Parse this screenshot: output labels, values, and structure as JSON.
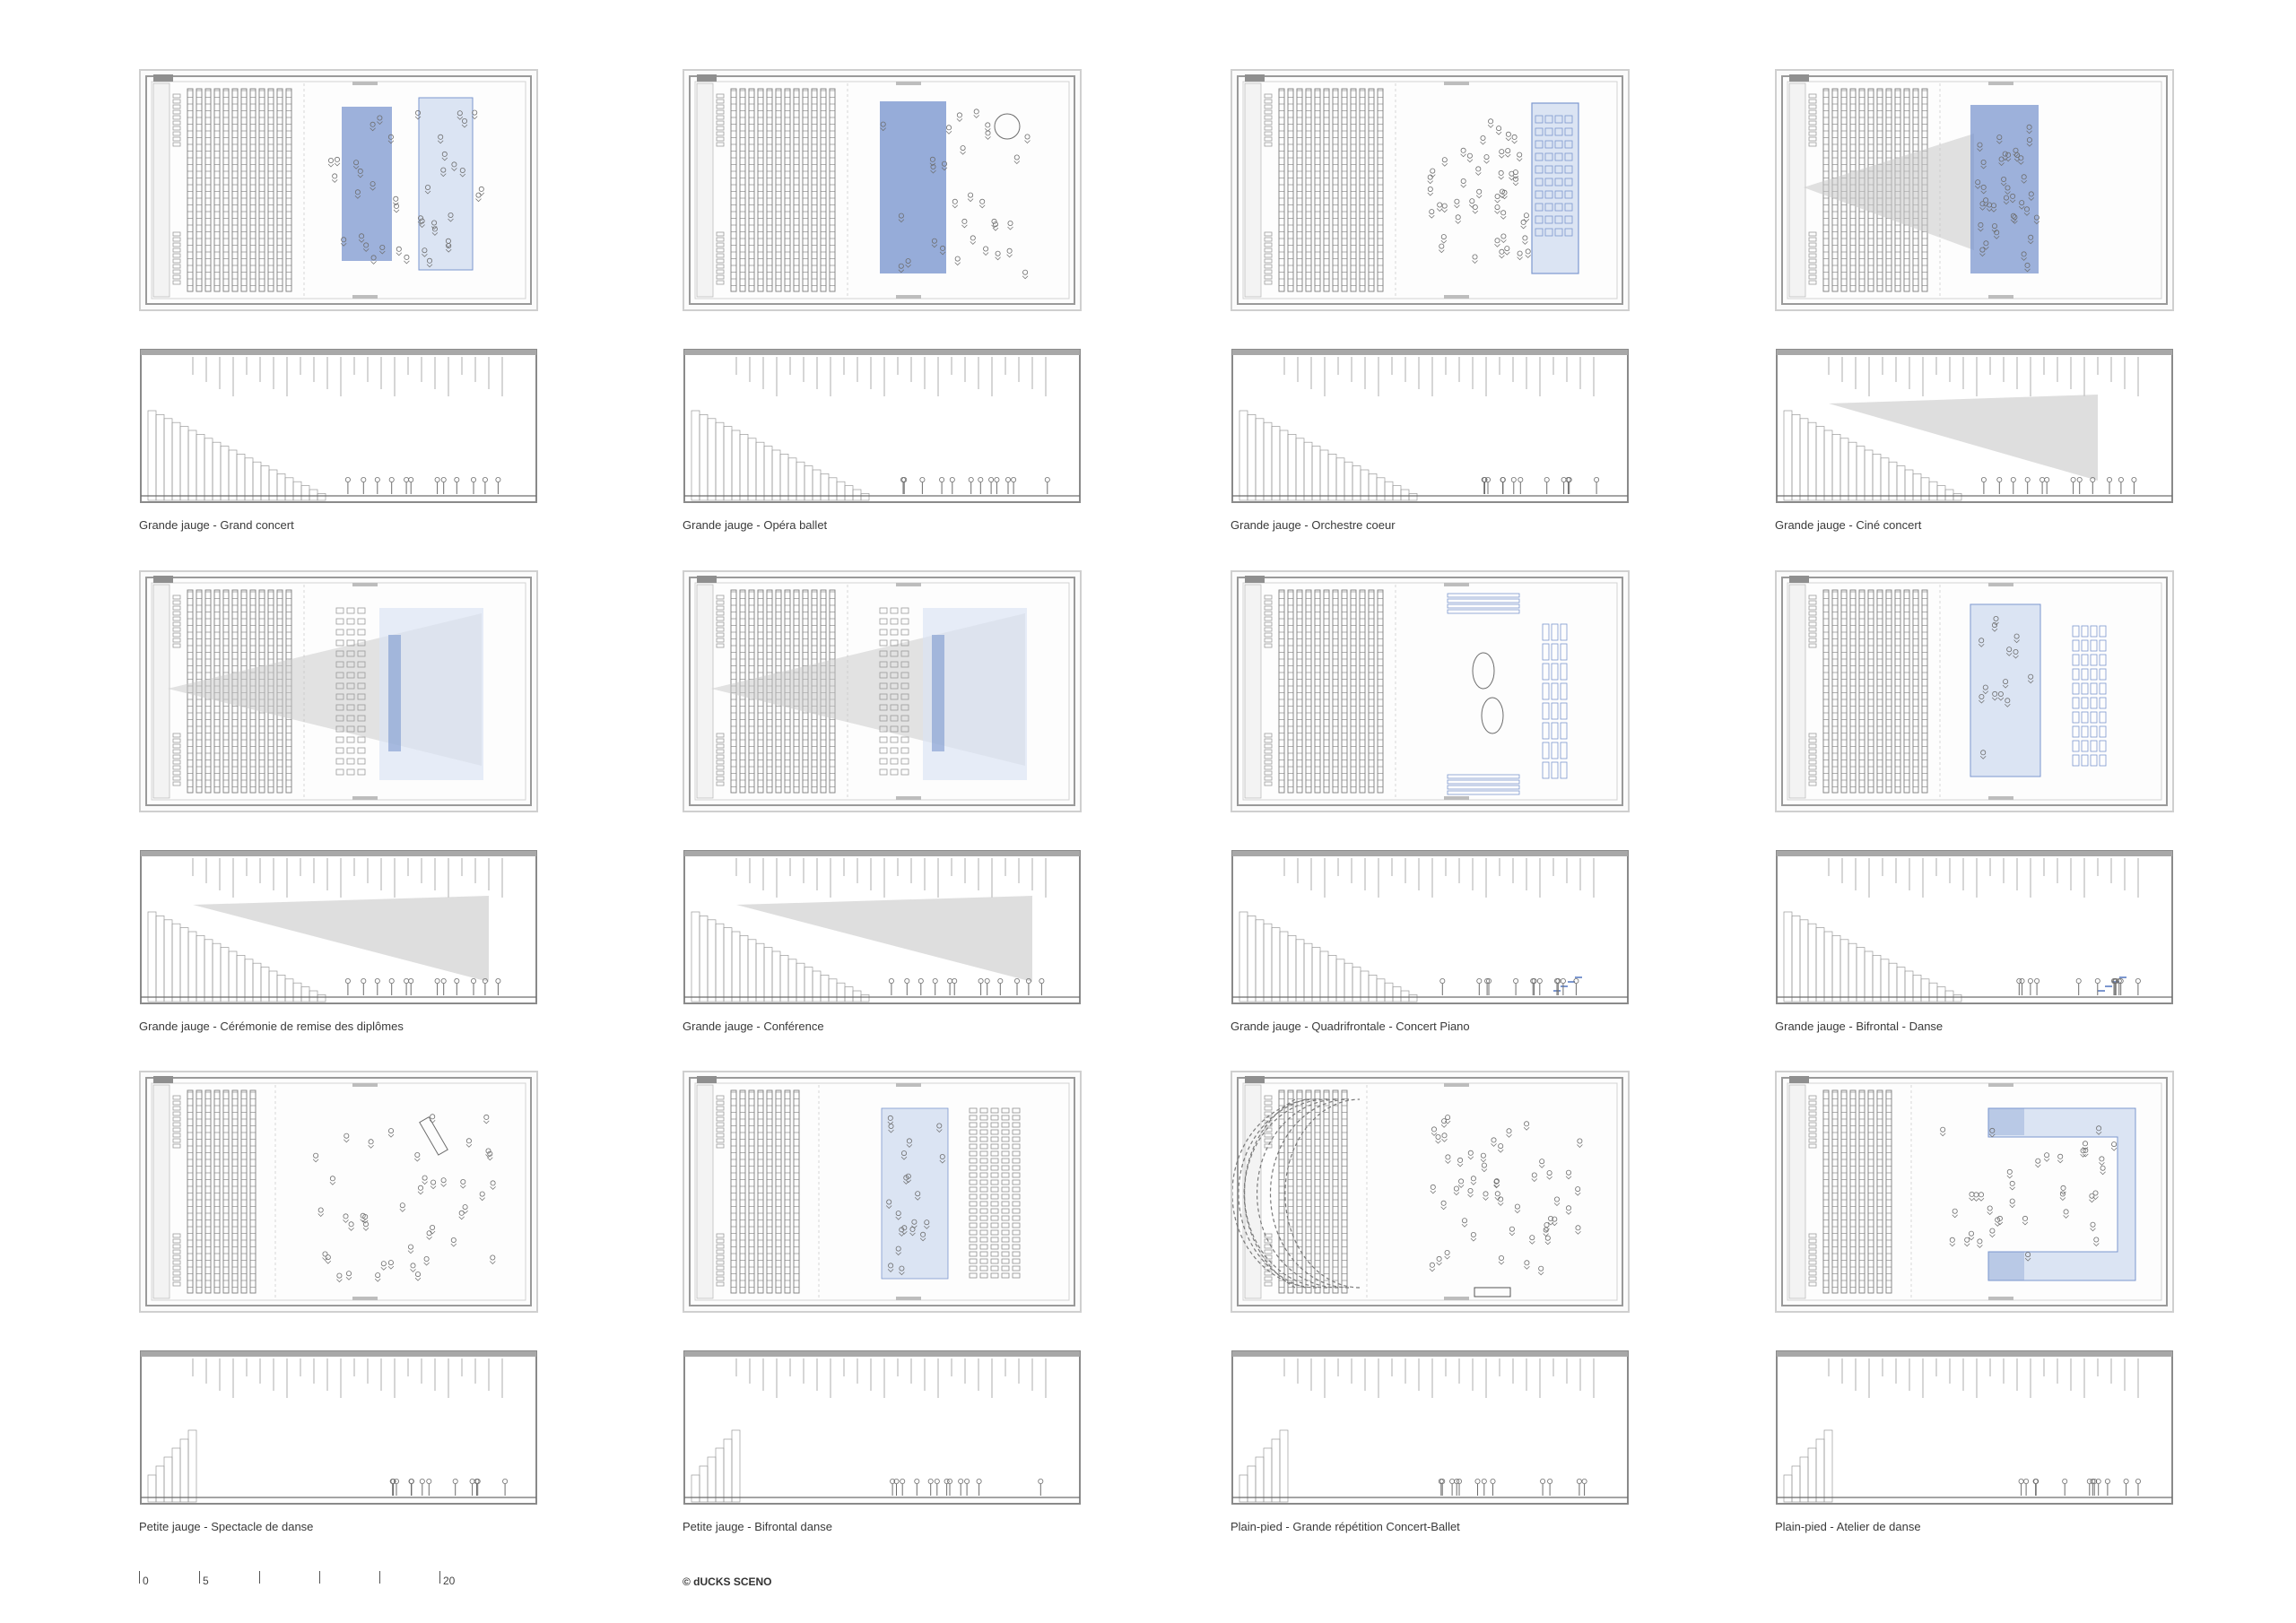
{
  "colors": {
    "accent_blue": "#7c97cf",
    "light_blue": "#dbe4f3",
    "grey_fill": "#c8c8c8",
    "line": "#8a8a8a"
  },
  "configurations": [
    {
      "caption": "Grande jauge - Grand concert",
      "overlay": "stage-blue-pair"
    },
    {
      "caption": "Grande jauge - Opéra ballet",
      "overlay": "pit-blue"
    },
    {
      "caption": "Grande jauge  - Orchestre coeur",
      "overlay": "choir-blue"
    },
    {
      "caption": "Grande jauge - Ciné concert",
      "overlay": "projection-blue"
    },
    {
      "caption": "Grande jauge - Cérémonie de remise des diplômes",
      "overlay": "projection-grey"
    },
    {
      "caption": "Grande jauge  - Conférence",
      "overlay": "projection-grey"
    },
    {
      "caption": "Grande jauge - Quadrifrontale - Concert Piano",
      "overlay": "quad-blue"
    },
    {
      "caption": "Grande jauge - Bifrontal - Danse",
      "overlay": "bifront-blue"
    },
    {
      "caption": "Petite jauge - Spectacle de danse",
      "overlay": "dance-none"
    },
    {
      "caption": "Petite jauge - Bifrontal danse",
      "overlay": "bifront-small"
    },
    {
      "caption": "Plain-pied - Grande répétition Concert-Ballet",
      "overlay": "flat-orchestra"
    },
    {
      "caption": "Plain-pied - Atelier de danse",
      "overlay": "flat-u"
    }
  ],
  "scale_bar": {
    "labels": [
      "0",
      "5",
      "20"
    ]
  },
  "copyright": "© dUCKS SCENO"
}
